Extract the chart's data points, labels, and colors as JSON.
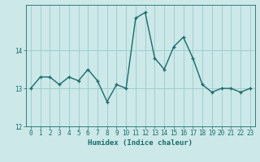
{
  "x": [
    0,
    1,
    2,
    3,
    4,
    5,
    6,
    7,
    8,
    9,
    10,
    11,
    12,
    13,
    14,
    15,
    16,
    17,
    18,
    19,
    20,
    21,
    22,
    23
  ],
  "y": [
    13.0,
    13.3,
    13.3,
    13.1,
    13.3,
    13.2,
    13.5,
    13.2,
    12.65,
    13.1,
    13.0,
    14.85,
    15.0,
    13.8,
    13.5,
    14.1,
    14.35,
    13.8,
    13.1,
    12.9,
    13.0,
    13.0,
    12.9,
    13.0
  ],
  "line_color": "#1a6b6b",
  "marker": "+",
  "marker_size": 3,
  "line_width": 1.0,
  "xlabel": "Humidex (Indice chaleur)",
  "xlim": [
    -0.5,
    23.5
  ],
  "ylim": [
    12.0,
    15.2
  ],
  "yticks": [
    12,
    13,
    14
  ],
  "xticks": [
    0,
    1,
    2,
    3,
    4,
    5,
    6,
    7,
    8,
    9,
    10,
    11,
    12,
    13,
    14,
    15,
    16,
    17,
    18,
    19,
    20,
    21,
    22,
    23
  ],
  "background_color": "#cce8e8",
  "grid_color": "#99cccc",
  "font_color": "#1a6b6b",
  "tick_fontsize": 5.5,
  "xlabel_size": 6.5
}
